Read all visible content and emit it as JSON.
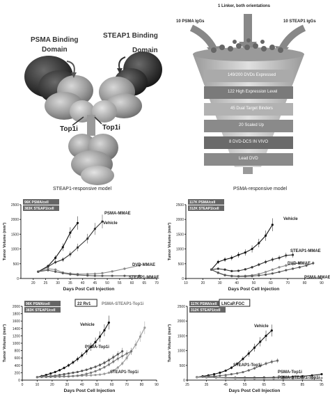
{
  "panel_a": {
    "psma_label": "PSMA Binding",
    "psma_sub": "Domain",
    "steap1_label": "STEAP1 Binding",
    "steap1_sub": "Domain",
    "top1i_left": "Top1i",
    "top1i_right": "Top1i",
    "caption": "STEAP1-responsive model"
  },
  "panel_b": {
    "header": "1 Linker, both orientations",
    "psma_igg": "10 PSMA IgGs",
    "steap1_igg": "10 STEAP1 IgGs",
    "steps": [
      "149/200 DVDs Expressed",
      "122 High Expression Level",
      "45 Dual Target Binders",
      "20 Scaled Up",
      "8 DVD-DCS IN VIVO",
      "Lead DVD"
    ],
    "caption": "PSMA-responsive model"
  },
  "charts": [
    {
      "name": "chart1",
      "badges": [
        "96K PSMA/cell",
        "383K STEAP1/cell"
      ],
      "ylabel": "Tumor Volume (mm³)",
      "xlabel": "Days Post Cell Injection",
      "xticks": [
        "20",
        "25",
        "30",
        "35",
        "40",
        "45",
        "50",
        "55",
        "60",
        "65",
        "70"
      ],
      "yticks": [
        "0",
        "500",
        "1000",
        "1500",
        "2000",
        "2500"
      ]
    },
    {
      "name": "chart2",
      "badges": [
        "117K PSMA/cell",
        "312K STEAP1/cell"
      ],
      "ylabel": "Tumor Volume (mm³)",
      "xlabel": "Days Post Cell Injection",
      "xticks": [
        "10",
        "20",
        "30",
        "40",
        "50",
        "60",
        "70",
        "80",
        "90"
      ],
      "yticks": [
        "0",
        "500",
        "1000",
        "1500",
        "2000",
        "2500"
      ]
    },
    {
      "name": "chart3",
      "badges": [
        "96K PSMA/cell",
        "383K STEAP1/cell"
      ],
      "tag": "22 Rv1",
      "series_title": "PSMA-STEAP1-Top1i",
      "ylabel": "Tumor Volume (mm³)",
      "xlabel": "Days Post Cell Injection",
      "xticks": [
        "0",
        "10",
        "20",
        "30",
        "40",
        "50",
        "60",
        "70",
        "80",
        "90"
      ],
      "yticks": [
        "0",
        "200",
        "400",
        "600",
        "800",
        "1000",
        "1200",
        "1400",
        "1600",
        "1800",
        "2000"
      ]
    },
    {
      "name": "chart4",
      "badges": [
        "117K PSMA/cell",
        "312K STEAP1/cell"
      ],
      "tag": "LNCaP.FGC",
      "ylabel": "Tumor Volume (mm³)",
      "xlabel": "Days Post Cell Injection",
      "xticks": [
        "25",
        "35",
        "45",
        "55",
        "65",
        "75",
        "85",
        "95"
      ],
      "yticks": [
        "0",
        "500",
        "1000",
        "1500",
        "2000",
        "2500"
      ]
    }
  ],
  "chart_data": [
    {
      "type": "line",
      "xlabel": "Days Post Cell Injection",
      "ylabel": "Tumor Volume (mm³)",
      "xlim": [
        15,
        70
      ],
      "ylim": [
        0,
        2500
      ],
      "series": [
        {
          "name": "Vehicle",
          "x": [
            22,
            26,
            29,
            32,
            35,
            38
          ],
          "y": [
            230,
            420,
            700,
            1060,
            1550,
            1880
          ],
          "color": "#111111"
        },
        {
          "name": "PSMA-MMAE",
          "x": [
            22,
            26,
            29,
            32,
            35,
            38,
            42,
            45,
            48
          ],
          "y": [
            230,
            400,
            550,
            640,
            820,
            1050,
            1350,
            1680,
            1930
          ],
          "color": "#333333"
        },
        {
          "name": "DVD-MMAE",
          "x": [
            22,
            26,
            29,
            32,
            35,
            38,
            42,
            45,
            48,
            52,
            57,
            63
          ],
          "y": [
            230,
            330,
            300,
            200,
            170,
            150,
            150,
            160,
            180,
            240,
            330,
            440
          ],
          "color": "#888888"
        },
        {
          "name": "STEAP1-MMAE",
          "x": [
            22,
            26,
            29,
            32,
            35,
            38,
            42,
            45,
            48,
            52,
            57,
            63
          ],
          "y": [
            230,
            280,
            230,
            180,
            140,
            120,
            100,
            90,
            90,
            90,
            90,
            90
          ],
          "color": "#555555"
        }
      ]
    },
    {
      "type": "line",
      "xlabel": "Days Post Cell Injection",
      "ylabel": "Tumor Volume (mm³)",
      "xlim": [
        10,
        90
      ],
      "ylim": [
        0,
        2500
      ],
      "series": [
        {
          "name": "Vehicle",
          "x": [
            25,
            29,
            33,
            37,
            41,
            45,
            49,
            53,
            57,
            61
          ],
          "y": [
            300,
            560,
            640,
            700,
            800,
            880,
            1000,
            1200,
            1450,
            1820
          ],
          "color": "#111111"
        },
        {
          "name": "STEAP1-MMAE",
          "x": [
            25,
            29,
            33,
            37,
            41,
            45,
            49,
            53,
            57,
            61,
            65,
            69,
            73
          ],
          "y": [
            300,
            330,
            300,
            250,
            260,
            310,
            380,
            470,
            560,
            640,
            700,
            780,
            800
          ],
          "color": "#333333"
        },
        {
          "name": "DVD-MMAE",
          "x": [
            25,
            29,
            33,
            37,
            41,
            45,
            49,
            53,
            57,
            61,
            65,
            69,
            73,
            77
          ],
          "y": [
            300,
            200,
            120,
            90,
            80,
            90,
            110,
            150,
            220,
            300,
            380,
            440,
            490,
            520
          ],
          "color": "#888888"
        },
        {
          "name": "PSMA-MMAE",
          "x": [
            25,
            29,
            33,
            37,
            41,
            45,
            49,
            53,
            57,
            61,
            65,
            69,
            73,
            77,
            81,
            85
          ],
          "y": [
            300,
            190,
            110,
            80,
            70,
            70,
            80,
            100,
            130,
            170,
            220,
            280,
            330,
            380,
            440,
            520
          ],
          "color": "#555555"
        }
      ]
    },
    {
      "type": "line",
      "xlabel": "Days Post Cell Injection",
      "ylabel": "Tumor Volume (mm³)",
      "xlim": [
        0,
        90
      ],
      "ylim": [
        0,
        2000
      ],
      "series": [
        {
          "name": "Vehicle",
          "x": [
            10,
            13,
            16,
            19,
            22,
            25,
            28,
            31,
            34,
            37,
            40,
            43,
            46,
            49,
            52,
            55,
            58
          ],
          "y": [
            80,
            110,
            140,
            180,
            220,
            270,
            330,
            400,
            480,
            570,
            670,
            780,
            900,
            1030,
            1180,
            1350,
            1560
          ],
          "color": "#111111"
        },
        {
          "name": "PSMA-Top1i",
          "x": [
            10,
            13,
            16,
            19,
            22,
            25,
            28,
            31,
            34,
            37,
            40,
            43,
            46,
            49,
            52,
            55,
            58,
            61,
            64,
            67
          ],
          "y": [
            80,
            90,
            100,
            110,
            120,
            140,
            160,
            180,
            200,
            220,
            250,
            280,
            320,
            360,
            410,
            470,
            540,
            620,
            700,
            780
          ],
          "color": "#555555"
        },
        {
          "name": "PSMA-STEAP1-Top1i",
          "x": [
            10,
            13,
            16,
            19,
            22,
            25,
            28,
            31,
            34,
            37,
            40,
            43,
            46,
            49,
            52,
            55,
            58,
            61,
            64,
            67,
            70,
            73,
            76,
            79,
            82
          ],
          "y": [
            80,
            85,
            90,
            90,
            95,
            100,
            100,
            105,
            110,
            115,
            120,
            125,
            130,
            140,
            150,
            170,
            200,
            260,
            340,
            450,
            600,
            780,
            960,
            1180,
            1420
          ],
          "color": "#999999"
        },
        {
          "name": "STEAP1-Top1i",
          "x": [
            10,
            13,
            16,
            19,
            22,
            25,
            28,
            31,
            34,
            37,
            40,
            43,
            46,
            49,
            52,
            55,
            58,
            61,
            64,
            67,
            70,
            73
          ],
          "y": [
            80,
            85,
            85,
            90,
            90,
            95,
            100,
            100,
            110,
            120,
            140,
            170,
            200,
            240,
            290,
            350,
            420,
            500,
            580,
            650,
            720,
            780
          ],
          "color": "#777777"
        }
      ]
    },
    {
      "type": "line",
      "xlabel": "Days Post Cell Injection",
      "ylabel": "Tumor Volume (mm³)",
      "xlim": [
        25,
        95
      ],
      "ylim": [
        0,
        2500
      ],
      "series": [
        {
          "name": "Vehicle",
          "x": [
            30,
            33,
            36,
            39,
            42,
            45,
            48,
            51,
            54,
            57,
            60,
            63,
            66,
            69
          ],
          "y": [
            100,
            130,
            160,
            200,
            250,
            320,
            420,
            550,
            720,
            900,
            1100,
            1300,
            1500,
            1680
          ],
          "color": "#111111"
        },
        {
          "name": "STEAP1-Top1i",
          "x": [
            30,
            33,
            36,
            39,
            42,
            45,
            48,
            51,
            54,
            57,
            60,
            63,
            66,
            69,
            72
          ],
          "y": [
            100,
            110,
            120,
            130,
            150,
            170,
            200,
            230,
            270,
            330,
            400,
            480,
            560,
            620,
            660
          ],
          "color": "#666666"
        },
        {
          "name": "PSMA-Top1i",
          "x": [
            30,
            35,
            40,
            45,
            50,
            55,
            60,
            65,
            70,
            75,
            80,
            85,
            90,
            95
          ],
          "y": [
            100,
            95,
            90,
            85,
            80,
            80,
            80,
            85,
            90,
            100,
            110,
            130,
            160,
            200
          ],
          "color": "#222222"
        },
        {
          "name": "PSMA-STEAP1-Top1i",
          "x": [
            30,
            35,
            40,
            45,
            50,
            55,
            60,
            65,
            70,
            75,
            80,
            85,
            90,
            95
          ],
          "y": [
            100,
            90,
            80,
            70,
            60,
            55,
            50,
            50,
            50,
            50,
            55,
            60,
            65,
            70
          ],
          "color": "#999999"
        }
      ]
    }
  ]
}
